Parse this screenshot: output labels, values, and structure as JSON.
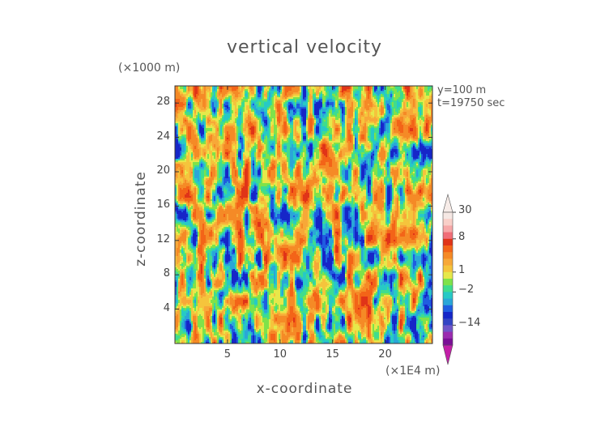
{
  "title": "vertical velocity",
  "chart_data": {
    "type": "heatmap",
    "title": "vertical velocity",
    "xlabel": "x-coordinate",
    "ylabel": "z-coordinate",
    "x_unit": "(×1E4 m)",
    "y_unit": "(×1000 m)",
    "xlim": [
      0,
      24.5
    ],
    "ylim": [
      0,
      30
    ],
    "x_ticks": [
      "5",
      "10",
      "15",
      "20"
    ],
    "x_tick_values": [
      5,
      10,
      15,
      20
    ],
    "y_ticks": [
      "4",
      "8",
      "12",
      "16",
      "20",
      "24",
      "28"
    ],
    "y_tick_values": [
      4,
      8,
      12,
      16,
      20,
      24,
      28
    ],
    "annotations": [
      "y=100 m",
      "t=19750 sec"
    ],
    "colorbar": {
      "tick_labels": [
        "30",
        "8",
        "1",
        "−2",
        "−14"
      ],
      "tick_levels": [
        30,
        8,
        1,
        -2,
        -14
      ],
      "levels": [
        -30,
        -20,
        -14,
        -10,
        -6,
        -4,
        -3,
        -2,
        -1,
        0,
        1,
        2,
        3,
        4,
        6,
        8,
        10,
        14,
        20,
        30
      ],
      "colors": [
        "#7a0f96",
        "#9a2bb0",
        "#6f55c8",
        "#3344c4",
        "#1626c8",
        "#1f5de0",
        "#2aa6d8",
        "#27c9c6",
        "#3fdc8e",
        "#7fe24a",
        "#e6e84a",
        "#f5c43c",
        "#f7a838",
        "#f58a26",
        "#f36418",
        "#e03418",
        "#f06e78",
        "#f7a8a8",
        "#f9cfc8",
        "#f6e8e4"
      ],
      "extend_top_color": "#f7ece8",
      "extend_bottom_color": "#c21fa8"
    }
  }
}
